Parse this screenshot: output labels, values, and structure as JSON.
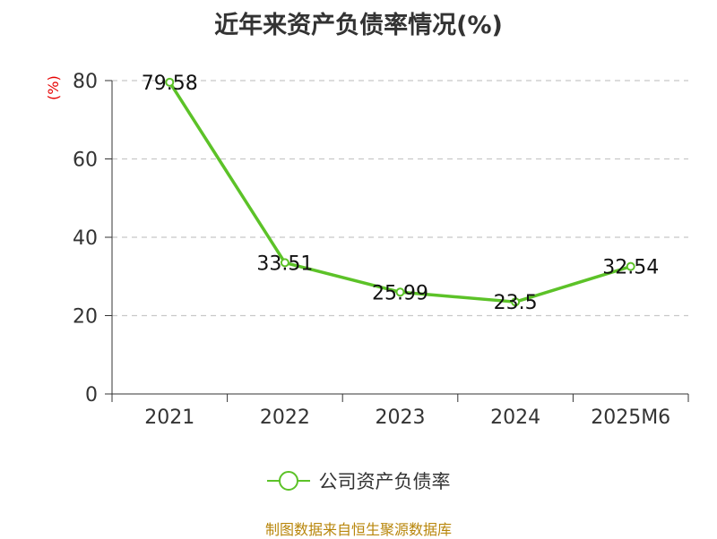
{
  "title": "近年来资产负债率情况(%)",
  "unit_label": "(%)",
  "legend_label": "公司资产负债率",
  "source": "制图数据来自恒生聚源数据库",
  "colors": {
    "line": "#5cc228",
    "axis": "#333333",
    "grid": "#c8c8c8",
    "unit": "#e60000",
    "source": "#b8860b"
  },
  "chart_data": {
    "type": "line",
    "categories": [
      "2021",
      "2022",
      "2023",
      "2024",
      "2025M6"
    ],
    "series": [
      {
        "name": "公司资产负债率",
        "values": [
          79.58,
          33.51,
          25.99,
          23.5,
          32.54
        ],
        "labels": [
          "79.58",
          "33.51",
          "25.99",
          "23.5",
          "32.54"
        ]
      }
    ],
    "y_ticks": [
      "0",
      "20",
      "40",
      "60",
      "80"
    ],
    "ylim": [
      0,
      80
    ],
    "grid": true,
    "legend_position": "bottom"
  }
}
